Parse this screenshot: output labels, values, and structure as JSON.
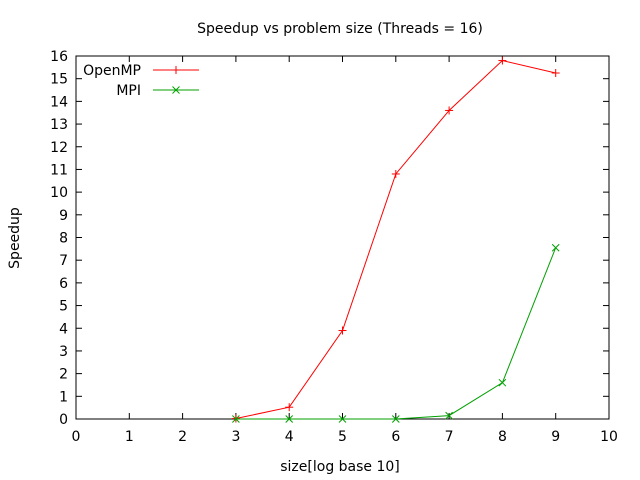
{
  "chart_data": {
    "type": "line",
    "title": "Speedup vs problem size (Threads = 16)",
    "xlabel": "size[log base 10]",
    "ylabel": "Speedup",
    "xlim": [
      0,
      10
    ],
    "ylim": [
      0,
      16
    ],
    "xticks": [
      0,
      1,
      2,
      3,
      4,
      5,
      6,
      7,
      8,
      9,
      10
    ],
    "yticks": [
      0,
      1,
      2,
      3,
      4,
      5,
      6,
      7,
      8,
      9,
      10,
      11,
      12,
      13,
      14,
      15,
      16
    ],
    "grid": false,
    "legend_position": "top-left",
    "series": [
      {
        "name": "OpenMP",
        "color": "#ff0000",
        "marker": "plus",
        "x": [
          3,
          4,
          5,
          6,
          7,
          8,
          9
        ],
        "y": [
          0.02,
          0.52,
          3.9,
          10.8,
          13.6,
          15.8,
          15.25
        ]
      },
      {
        "name": "MPI",
        "color": "#00a000",
        "marker": "cross",
        "x": [
          3,
          4,
          5,
          6,
          7,
          8,
          9
        ],
        "y": [
          0.0,
          0.0,
          0.0,
          0.0,
          0.15,
          1.6,
          7.55
        ]
      }
    ]
  }
}
